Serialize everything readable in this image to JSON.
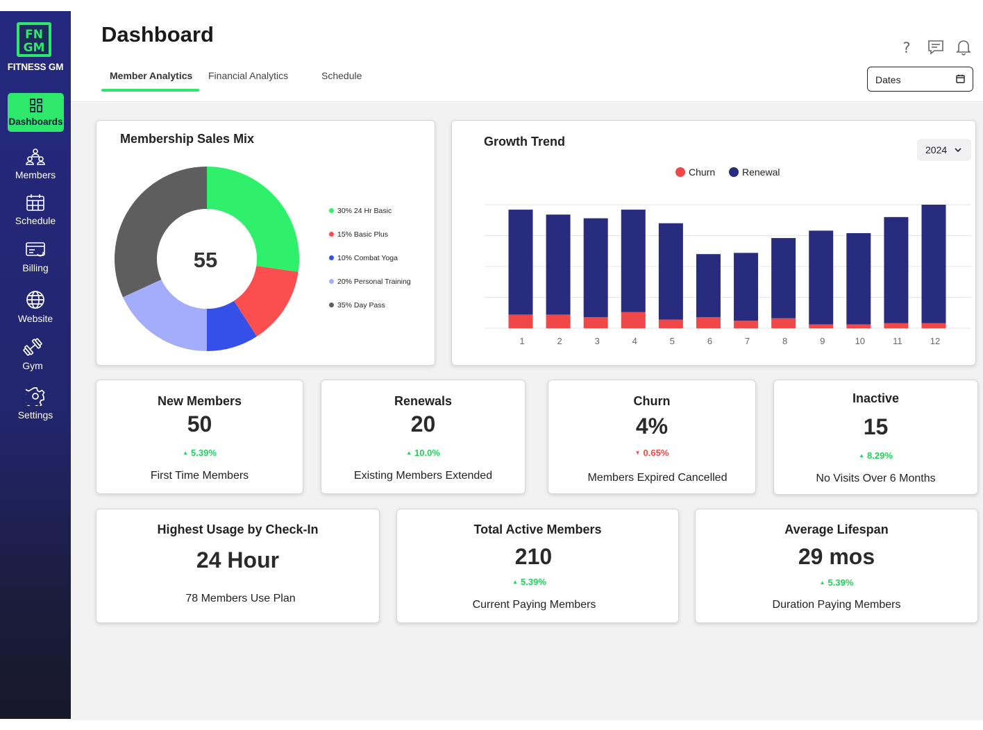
{
  "brand": {
    "name": "FITNESS GM",
    "logo_text": "FN GM"
  },
  "sidebar": {
    "items": [
      {
        "label": "Dashboards",
        "icon": "dashboard-icon",
        "active": true
      },
      {
        "label": "Members",
        "icon": "members-icon"
      },
      {
        "label": "Schedule",
        "icon": "calendar-icon"
      },
      {
        "label": "Billing",
        "icon": "billing-icon"
      },
      {
        "label": "Website",
        "icon": "globe-icon"
      },
      {
        "label": "Gym",
        "icon": "dumbbell-icon"
      },
      {
        "label": "Settings",
        "icon": "gear-icon"
      }
    ]
  },
  "header": {
    "title": "Dashboard",
    "tabs": [
      {
        "label": "Member Analytics",
        "active": true
      },
      {
        "label": "Financial Analytics"
      },
      {
        "label": "Schedule"
      }
    ],
    "icons": [
      "help-icon",
      "chat-icon",
      "bell-icon"
    ],
    "dates_label": "Dates"
  },
  "sales_mix": {
    "title": "Membership Sales Mix",
    "center_value": "55",
    "legend": [
      {
        "label": "30% 24 Hr Basic",
        "color": "#2ff06a"
      },
      {
        "label": "15% Basic Plus",
        "color": "#fb4f4f"
      },
      {
        "label": "10% Combat Yoga",
        "color": "#3450e8"
      },
      {
        "label": "20% Personal Training",
        "color": "#a3adfb"
      },
      {
        "label": "35% Day Pass",
        "color": "#5e5e5e"
      }
    ]
  },
  "growth": {
    "title": "Growth Trend",
    "year": "2024",
    "legend": [
      {
        "label": "Churn",
        "color": "#f04848"
      },
      {
        "label": "Renewal",
        "color": "#272c7e"
      }
    ]
  },
  "chart_data": [
    {
      "type": "pie",
      "title": "Membership Sales Mix",
      "center_label": "55",
      "labels": [
        "24 Hr Basic",
        "Basic Plus",
        "Combat Yoga",
        "Personal Training",
        "Day Pass"
      ],
      "values": [
        30,
        15,
        10,
        20,
        35
      ],
      "colors": [
        "#2ff06a",
        "#fb4f4f",
        "#3450e8",
        "#a3adfb",
        "#5e5e5e"
      ]
    },
    {
      "type": "bar",
      "title": "Growth Trend",
      "stacked": true,
      "categories": [
        "1",
        "2",
        "3",
        "4",
        "5",
        "6",
        "7",
        "8",
        "9",
        "10",
        "11",
        "12"
      ],
      "series": [
        {
          "name": "Churn",
          "color": "#f04848",
          "values": [
            11,
            11,
            9,
            13,
            7,
            9,
            6,
            8,
            3,
            3,
            4,
            4
          ]
        },
        {
          "name": "Renewal",
          "color": "#272c7e",
          "values": [
            85,
            81,
            80,
            83,
            78,
            51,
            55,
            65,
            76,
            74,
            86,
            96
          ]
        }
      ],
      "ylim": [
        0,
        100
      ],
      "grid": true,
      "legend_position": "top"
    }
  ],
  "stats_row1": [
    {
      "title": "New Members",
      "value": "50",
      "change": "5.39%",
      "direction": "up",
      "sub": "First Time Members"
    },
    {
      "title": "Renewals",
      "value": "20",
      "change": "10.0%",
      "direction": "up",
      "sub": "Existing Members Extended"
    },
    {
      "title": "Churn",
      "value": "4%",
      "change": "0.65%",
      "direction": "down",
      "sub": "Members Expired Cancelled"
    },
    {
      "title": "Inactive",
      "value": "15",
      "change": "8.29%",
      "direction": "up",
      "sub": "No Visits Over 6 Months"
    }
  ],
  "stats_row2": [
    {
      "title": "Highest Usage by Check-In",
      "value": "24 Hour",
      "sub": "78 Members Use Plan"
    },
    {
      "title": "Total Active Members",
      "value": "210",
      "change": "5.39%",
      "direction": "up",
      "sub": "Current Paying Members"
    },
    {
      "title": "Average Lifespan",
      "value": "29 mos",
      "change": "5.39%",
      "direction": "up",
      "sub": "Duration Paying Members"
    }
  ]
}
